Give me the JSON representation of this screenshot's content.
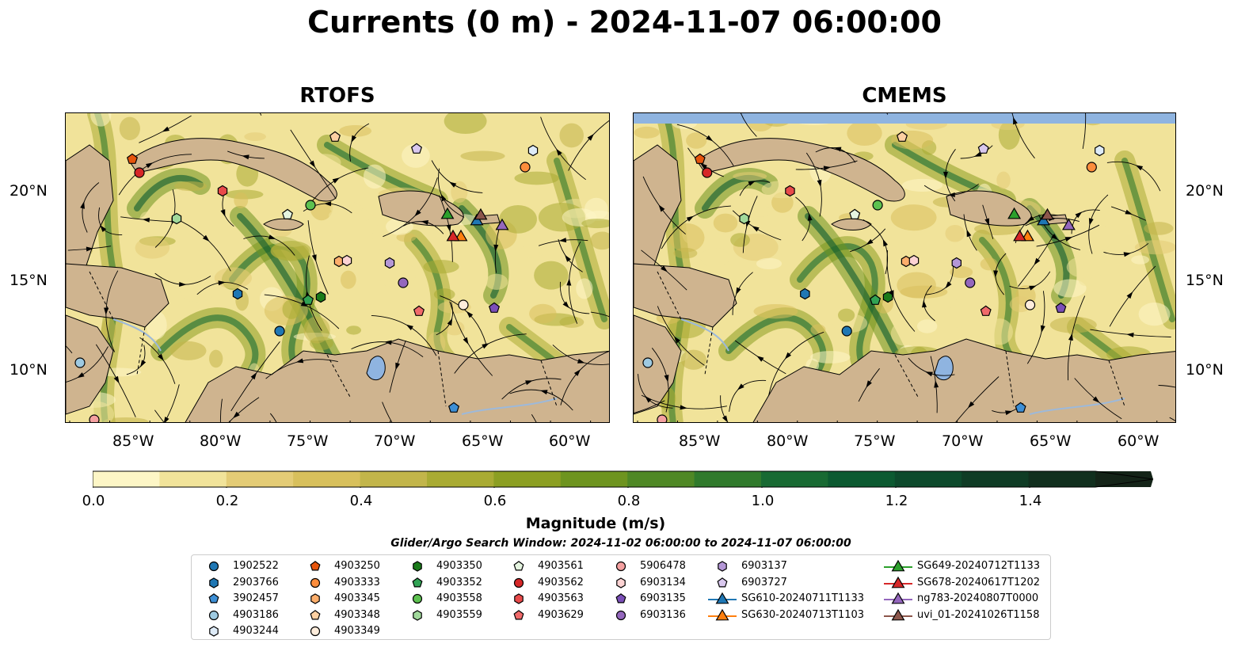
{
  "title": "Currents (0 m) - 2024-11-07 06:00:00",
  "panels": [
    {
      "title": "RTOFS"
    },
    {
      "title": "CMEMS"
    }
  ],
  "lat_labels": [
    "20°N",
    "15°N",
    "10°N"
  ],
  "lon_labels": [
    "85°W",
    "80°W",
    "75°W",
    "70°W",
    "65°W",
    "60°W"
  ],
  "colorbar": {
    "title": "Magnitude (m/s)",
    "tick_labels": [
      "0.0",
      "0.2",
      "0.4",
      "0.6",
      "0.8",
      "1.0",
      "1.2",
      "1.4"
    ],
    "colors": [
      "#fdf6c6",
      "#f1e39a",
      "#e4cc76",
      "#d8c05c",
      "#c2b54a",
      "#a9ab33",
      "#8c9f22",
      "#6e941f",
      "#4f8825",
      "#307a2c",
      "#186a33",
      "#0c5a31",
      "#0d4a2c",
      "#0f3c25",
      "#112f1e",
      "#142418"
    ]
  },
  "search_window": "Glider/Argo Search Window: 2024-11-02 06:00:00 to 2024-11-07 06:00:00",
  "legend": {
    "entries": [
      {
        "label": "1902522",
        "marker": "circle",
        "color": "#1f77b4"
      },
      {
        "label": "2903766",
        "marker": "hexagon",
        "color": "#1f77b4"
      },
      {
        "label": "3902457",
        "marker": "pentagon",
        "color": "#3d8fd6"
      },
      {
        "label": "4903186",
        "marker": "circle",
        "color": "#9ecae1"
      },
      {
        "label": "4903244",
        "marker": "hexagon",
        "color": "#deebf7"
      },
      {
        "label": "4903250",
        "marker": "pentagon",
        "color": "#e6550d"
      },
      {
        "label": "4903333",
        "marker": "circle",
        "color": "#fd8d3c"
      },
      {
        "label": "4903345",
        "marker": "hexagon",
        "color": "#fdae6b"
      },
      {
        "label": "4903348",
        "marker": "pentagon",
        "color": "#fdd0a2"
      },
      {
        "label": "4903349",
        "marker": "circle",
        "color": "#feeddc"
      },
      {
        "label": "4903350",
        "marker": "hexagon",
        "color": "#1a7a1a"
      },
      {
        "label": "4903352",
        "marker": "pentagon",
        "color": "#31a354"
      },
      {
        "label": "4903558",
        "marker": "circle",
        "color": "#5dc150"
      },
      {
        "label": "4903559",
        "marker": "hexagon",
        "color": "#a1d99b"
      },
      {
        "label": "4903561",
        "marker": "pentagon",
        "color": "#e5f5e0"
      },
      {
        "label": "4903562",
        "marker": "circle",
        "color": "#d62728"
      },
      {
        "label": "4903563",
        "marker": "hexagon",
        "color": "#e84a4a"
      },
      {
        "label": "4903629",
        "marker": "pentagon",
        "color": "#f06a6a"
      },
      {
        "label": "5906478",
        "marker": "circle",
        "color": "#f4a0a0"
      },
      {
        "label": "6903134",
        "marker": "hexagon",
        "color": "#fcd3d3"
      },
      {
        "label": "6903135",
        "marker": "pentagon",
        "color": "#7b4fb8"
      },
      {
        "label": "6903136",
        "marker": "circle",
        "color": "#9467bd"
      },
      {
        "label": "6903137",
        "marker": "hexagon",
        "color": "#b497d6"
      },
      {
        "label": "6903727",
        "marker": "pentagon",
        "color": "#d9c8ee"
      },
      {
        "label": "SG610-20240711T1133",
        "marker": "triangle",
        "color": "#1f77b4"
      },
      {
        "label": "SG630-20240713T1103",
        "marker": "triangle",
        "color": "#ff7f0e"
      },
      {
        "label": "SG649-20240712T1133",
        "marker": "triangle",
        "color": "#2ca02c"
      },
      {
        "label": "SG678-20240617T1202",
        "marker": "triangle",
        "color": "#d62728"
      },
      {
        "label": "ng783-20240807T0000",
        "marker": "triangle",
        "color": "#9467bd"
      },
      {
        "label": "uvi_01-20241026T1158",
        "marker": "triangle",
        "color": "#8c564b"
      }
    ]
  },
  "map_colors": {
    "land": "#cfb48f",
    "water_inland": "#8fb4e0",
    "rivers": "#9db9da",
    "streamline": "#000000"
  }
}
